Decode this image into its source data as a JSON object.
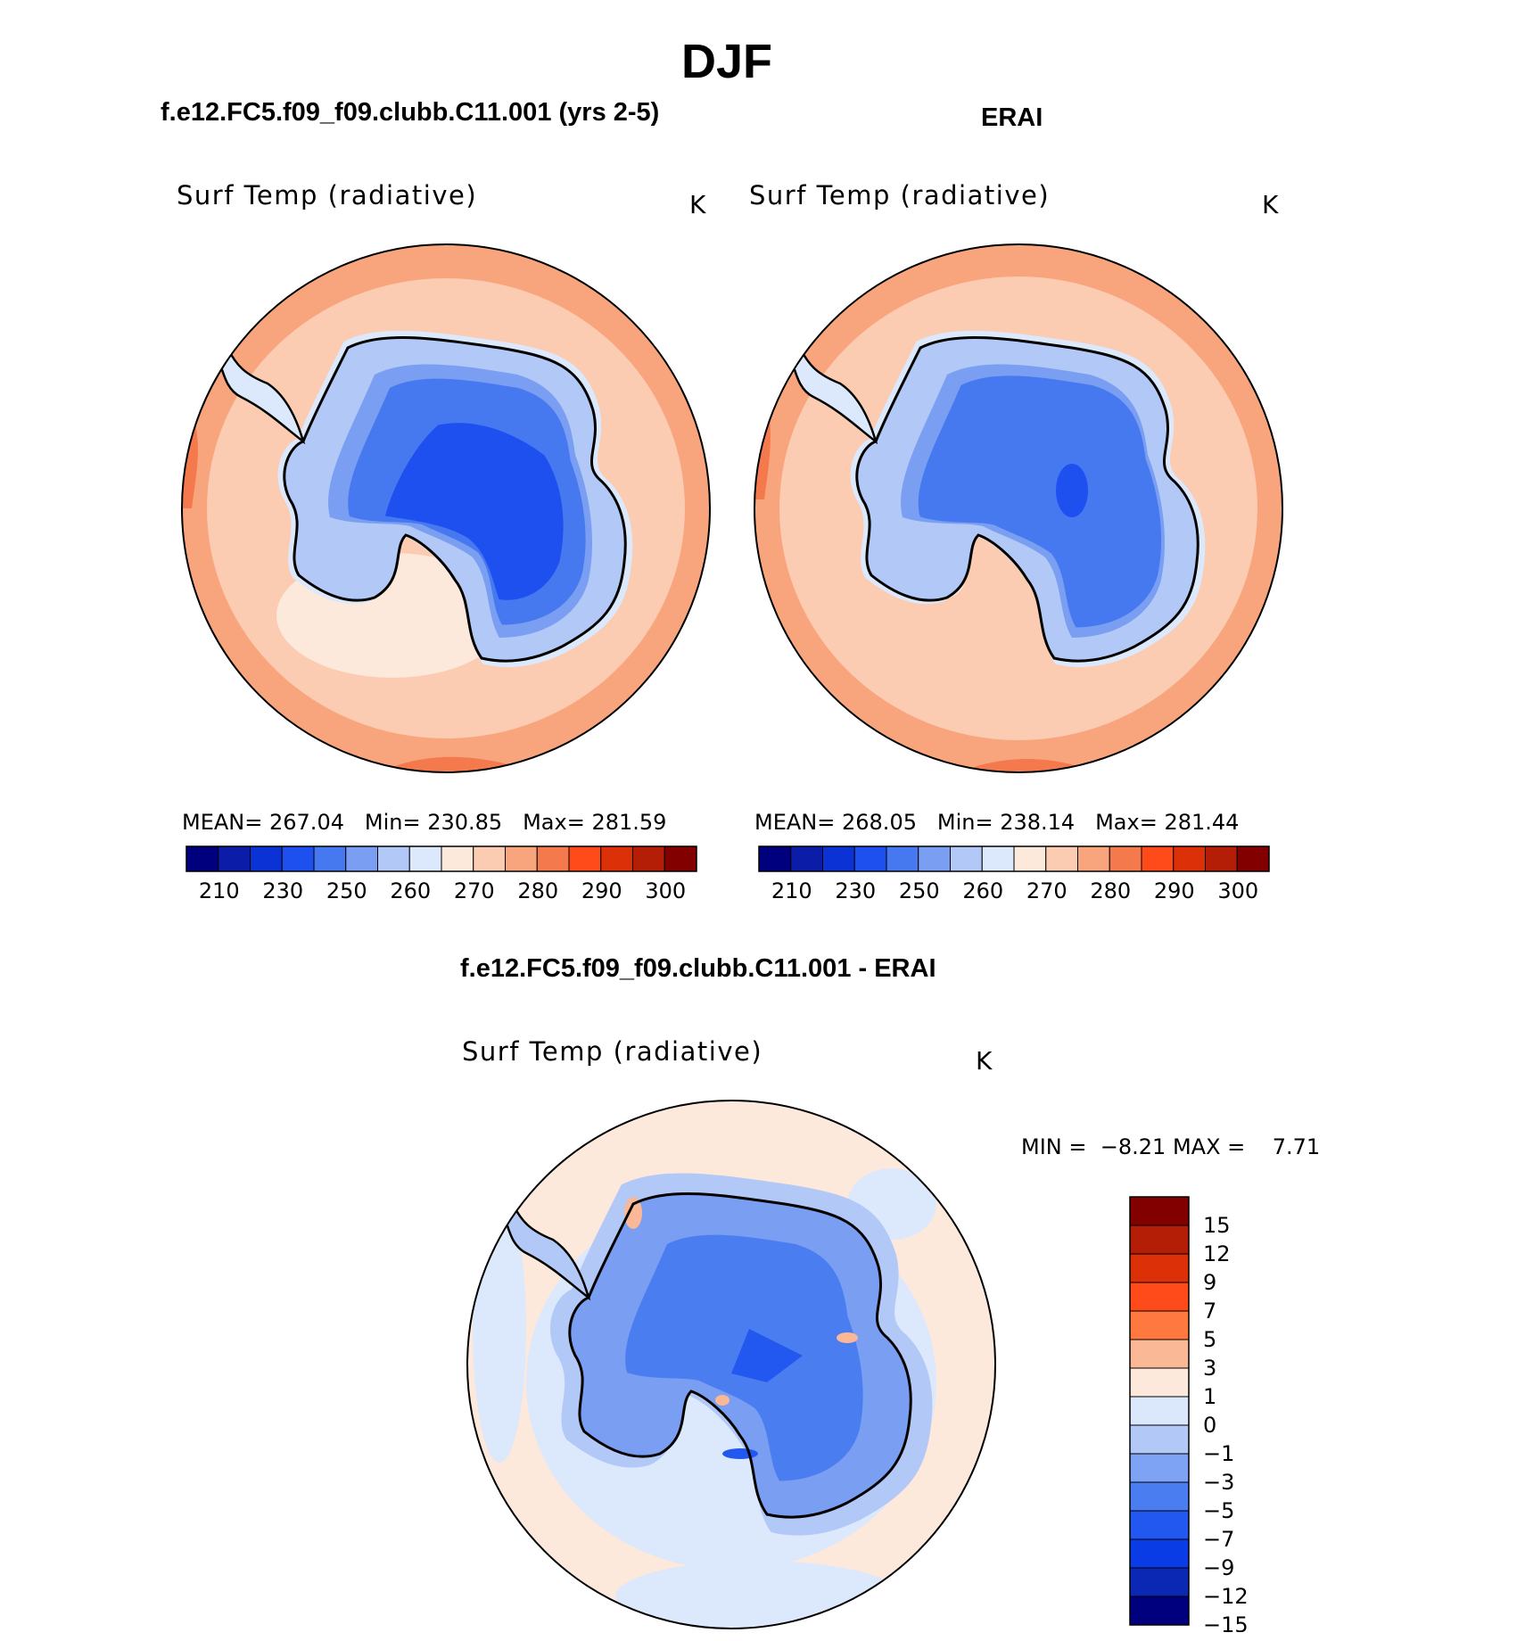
{
  "figure": {
    "title": "DJF"
  },
  "panels": [
    {
      "id": "model",
      "case_title": "f.e12.FC5.f09_f09.clubb.C11.001 (yrs 2-5)",
      "variable": "Surf Temp (radiative)",
      "units": "K",
      "stats": {
        "mean_label": "MEAN=",
        "mean": "267.04",
        "min_label": "Min=",
        "min": "230.85",
        "max_label": "Max=",
        "max": "281.59"
      }
    },
    {
      "id": "obs",
      "case_title": "ERAI",
      "variable": "Surf Temp (radiative)",
      "units": "K",
      "stats": {
        "mean_label": "MEAN=",
        "mean": "268.05",
        "min_label": "Min=",
        "min": "238.14",
        "max_label": "Max=",
        "max": "281.44"
      }
    },
    {
      "id": "diff",
      "case_title": "f.e12.FC5.f09_f09.clubb.C11.001 - ERAI",
      "variable": "Surf Temp (radiative)",
      "units": "K",
      "stats": {
        "min_label": "MIN =",
        "min": "−8.21",
        "max_label": "MAX =",
        "max": "7.71"
      }
    }
  ],
  "colorbars": {
    "absolute": {
      "colors": [
        "#00007f",
        "#0a1ca8",
        "#0a32d4",
        "#1e50f0",
        "#4678f0",
        "#7a9ef2",
        "#b2c8f7",
        "#dce8fb",
        "#fde8dc",
        "#fbcbb2",
        "#f8a57e",
        "#f47a4e",
        "#ff4a1a",
        "#dc3008",
        "#b41e06",
        "#820000"
      ],
      "tick_labels": [
        "210",
        "230",
        "250",
        "260",
        "270",
        "280",
        "290",
        "300"
      ]
    },
    "difference": {
      "colors": [
        "#00007f",
        "#0a28b4",
        "#0a3ce6",
        "#2358f0",
        "#4a7ef0",
        "#7ea2f4",
        "#b2c8f7",
        "#dbe8fb",
        "#fde8dc",
        "#fbb896",
        "#ff7840",
        "#ff4a1a",
        "#dc3008",
        "#b41e06",
        "#820000"
      ],
      "tick_labels": [
        "15",
        "12",
        "9",
        "7",
        "5",
        "3",
        "1",
        "0",
        "−1",
        "−3",
        "−5",
        "−7",
        "−9",
        "−12",
        "−15"
      ]
    }
  }
}
